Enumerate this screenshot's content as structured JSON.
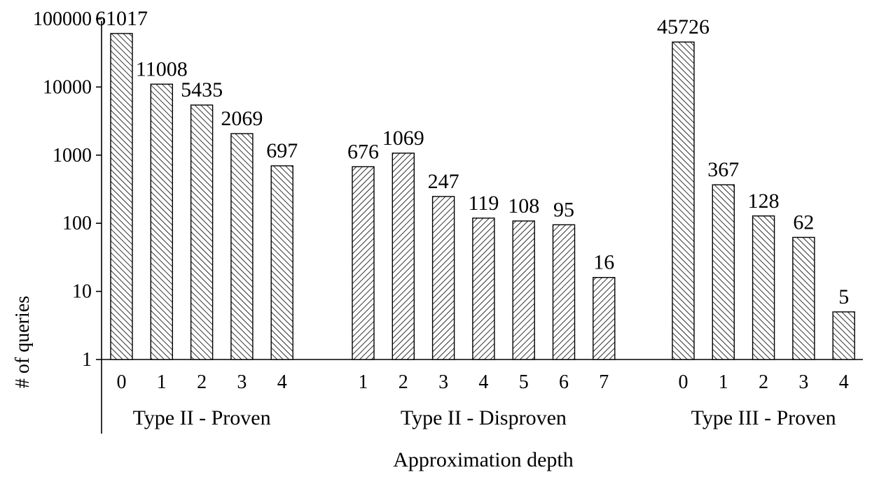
{
  "chart_data": {
    "type": "bar",
    "xlabel": "Approximation depth",
    "ylabel": "# of queries",
    "y_scale": "log",
    "ylim": [
      1,
      100000
    ],
    "y_ticks": [
      "1",
      "10",
      "100",
      "1000",
      "10000",
      "100000"
    ],
    "grid": false,
    "legend": "none",
    "groups": [
      {
        "label": "Type II - Proven",
        "hatch": "backslash",
        "categories": [
          "0",
          "1",
          "2",
          "3",
          "4"
        ],
        "values": [
          61017,
          11008,
          5435,
          2069,
          697
        ]
      },
      {
        "label": "Type II - Disproven",
        "hatch": "slash",
        "categories": [
          "1",
          "2",
          "3",
          "4",
          "5",
          "6",
          "7"
        ],
        "values": [
          676,
          1069,
          247,
          119,
          108,
          95,
          16
        ]
      },
      {
        "label": "Type III - Proven",
        "hatch": "backslash",
        "categories": [
          "0",
          "1",
          "2",
          "3",
          "4"
        ],
        "values": [
          45726,
          367,
          128,
          62,
          5
        ]
      }
    ],
    "colors": {
      "bar_fill": "#ffffff",
      "stroke": "#000000"
    }
  }
}
